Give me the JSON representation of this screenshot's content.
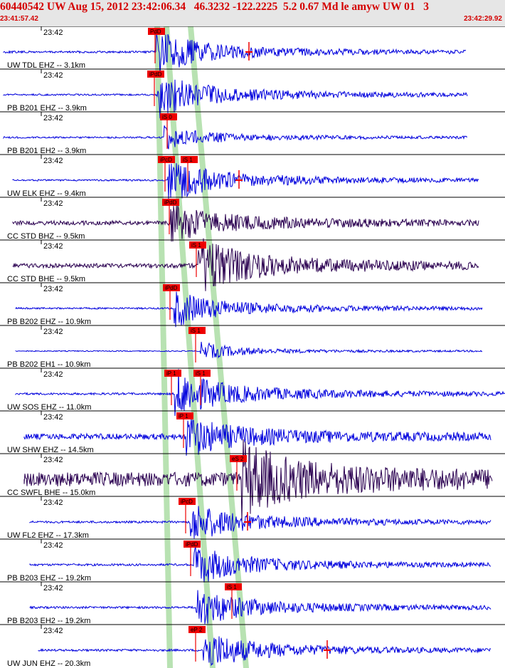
{
  "event_header": "60440542 UW Aug 15, 2012 23:42:06.34   46.3232 -122.2225  5.2 0.67 Md le amyw UW 01   3",
  "window": {
    "start": "23:41:57.42",
    "end": "23:42:29.92"
  },
  "colors": {
    "header_bg": "#e6e6e6",
    "header_text": "#d40000",
    "trace_blue": "#0000dd",
    "trace_dark": "#2a0050",
    "pick_red": "#ee0000",
    "pick_band": "#b8e2b2"
  },
  "chart_data": {
    "type": "seismogram",
    "time_label": "23:42",
    "tracks": [
      {
        "station": "UW TDL EHZ -- 3.1km",
        "picks": [
          "PdD",
          ""
        ]
      },
      {
        "station": "PB B201 EHZ -- 3.9km",
        "picks": [
          "iPdD"
        ]
      },
      {
        "station": "PB B201 EH2 -- 3.9km",
        "picks": [
          "iS 0"
        ]
      },
      {
        "station": "UW ELK EHZ -- 9.4km",
        "picks": [
          "iPcD",
          "iS 1"
        ]
      },
      {
        "station": "CC STD BHZ -- 9.5km",
        "picks": [
          "iPdD"
        ]
      },
      {
        "station": "CC STD BHE -- 9.5km",
        "picks": [
          "iS 1"
        ]
      },
      {
        "station": "PB B202 EHZ -- 10.9km",
        "picks": [
          "iPdD"
        ]
      },
      {
        "station": "PB B202 EH1 -- 10.9km",
        "picks": [
          "iS 1"
        ]
      },
      {
        "station": "UW SOS EHZ -- 11.0km",
        "picks": [
          "iP 1",
          "iS 1"
        ]
      },
      {
        "station": "UW SHW EHZ -- 14.5km",
        "picks": [
          "iP 1"
        ]
      },
      {
        "station": "CC SWFL BHE -- 15.0km",
        "picks": [
          "eS 2"
        ]
      },
      {
        "station": "UW FL2 EHZ -- 17.3km",
        "picks": [
          "iPcD"
        ]
      },
      {
        "station": "PB B203 EHZ -- 19.2km",
        "picks": [
          "iPdD"
        ]
      },
      {
        "station": "PB B203 EH2 -- 19.2km",
        "picks": [
          "iS 1"
        ]
      },
      {
        "station": "UW JUN EHZ -- 20.3km",
        "picks": [
          "eP 2"
        ]
      }
    ]
  }
}
